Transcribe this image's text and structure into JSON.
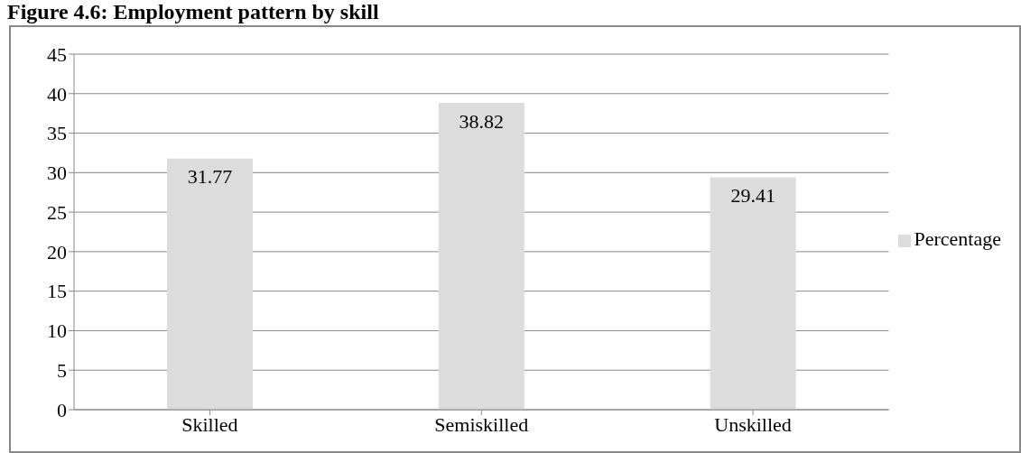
{
  "chart_data": {
    "type": "bar",
    "title": "Figure 4.6: Employment pattern by skill",
    "categories": [
      "Skilled",
      "Semiskilled",
      "Unskilled"
    ],
    "series": [
      {
        "name": "Percentage",
        "color": "#dcdcdc",
        "values": [
          31.77,
          38.82,
          29.41
        ]
      }
    ],
    "ylim": [
      0,
      45
    ],
    "yticks": [
      0,
      5,
      10,
      15,
      20,
      25,
      30,
      35,
      40,
      45
    ],
    "grid": "y",
    "legend": "right",
    "data_labels": true
  }
}
